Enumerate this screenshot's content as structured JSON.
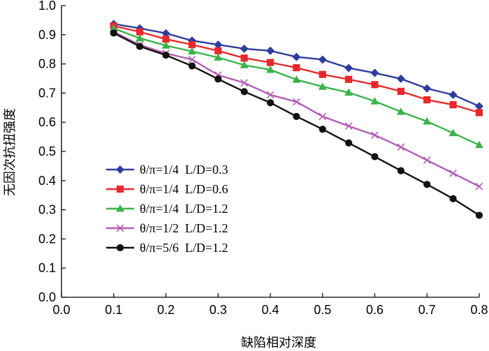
{
  "chart_data": {
    "type": "line",
    "title": "",
    "xlabel": "缺陷相对深度",
    "ylabel": "无因次抗扭强度",
    "xlim": [
      0.0,
      0.8
    ],
    "ylim": [
      0.0,
      1.0
    ],
    "x_ticks": [
      "0.0",
      "0.1",
      "0.2",
      "0.3",
      "0.4",
      "0.5",
      "0.6",
      "0.7",
      "0.8"
    ],
    "y_ticks": [
      "0.0",
      "0.1",
      "0.2",
      "0.3",
      "0.4",
      "0.5",
      "0.6",
      "0.7",
      "0.8",
      "0.9",
      "1.0"
    ],
    "grid": false,
    "legend_position": "bottom-left",
    "x": [
      0.1,
      0.15,
      0.2,
      0.25,
      0.3,
      0.35,
      0.4,
      0.45,
      0.5,
      0.55,
      0.6,
      0.65,
      0.7,
      0.75,
      0.8
    ],
    "series": [
      {
        "name": "θ/π=1/4  L/D=0.3",
        "color": "#2e3d9e",
        "marker": "diamond",
        "values": [
          0.937,
          0.922,
          0.905,
          0.88,
          0.866,
          0.852,
          0.845,
          0.824,
          0.815,
          0.786,
          0.769,
          0.749,
          0.716,
          0.694,
          0.655
        ]
      },
      {
        "name": "θ/π=1/4  L/D=0.6",
        "color": "#e8282c",
        "marker": "square",
        "values": [
          0.93,
          0.91,
          0.885,
          0.866,
          0.845,
          0.82,
          0.805,
          0.787,
          0.764,
          0.747,
          0.729,
          0.706,
          0.677,
          0.66,
          0.633
        ]
      },
      {
        "name": "θ/π=1/4  L/D=1.2",
        "color": "#3bb34a",
        "marker": "triangle",
        "values": [
          0.922,
          0.888,
          0.863,
          0.843,
          0.822,
          0.796,
          0.78,
          0.746,
          0.722,
          0.702,
          0.672,
          0.636,
          0.603,
          0.563,
          0.522
        ]
      },
      {
        "name": "θ/π=1/2  L/D=1.2",
        "color": "#b45db4",
        "marker": "x",
        "values": [
          0.91,
          0.865,
          0.836,
          0.815,
          0.762,
          0.735,
          0.694,
          0.67,
          0.62,
          0.587,
          0.556,
          0.515,
          0.47,
          0.425,
          0.38
        ]
      },
      {
        "name": "θ/π=5/6  L/D=1.2",
        "color": "#111111",
        "marker": "circle",
        "values": [
          0.906,
          0.86,
          0.83,
          0.793,
          0.748,
          0.705,
          0.667,
          0.62,
          0.576,
          0.529,
          0.482,
          0.434,
          0.387,
          0.338,
          0.281
        ]
      }
    ]
  }
}
